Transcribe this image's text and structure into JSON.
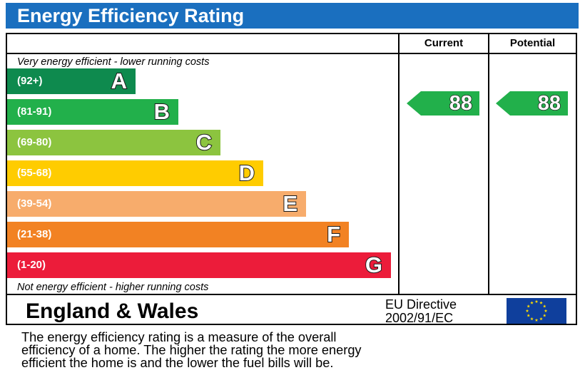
{
  "title": "Energy Efficiency Rating",
  "columns": {
    "current": "Current",
    "potential": "Potential"
  },
  "top_note": "Very energy efficient - lower running costs",
  "bottom_note": "Not energy efficient - higher running costs",
  "region": "England & Wales",
  "directive": {
    "line1": "EU Directive",
    "line2": "2002/91/EC"
  },
  "description": {
    "line1": "The energy efficiency rating is a measure of the overall",
    "line2": "efficiency of a home.  The higher the rating the more energy",
    "line3": "efficient the home is and the lower the fuel bills will be."
  },
  "chart_data": {
    "type": "bar",
    "categories": [
      "A",
      "B",
      "C",
      "D",
      "E",
      "F",
      "G"
    ],
    "bands": [
      {
        "letter": "A",
        "range": "(92+)",
        "color": "#0e8a4e"
      },
      {
        "letter": "B",
        "range": "(81-91)",
        "color": "#22b04b"
      },
      {
        "letter": "C",
        "range": "(69-80)",
        "color": "#8cc43f"
      },
      {
        "letter": "D",
        "range": "(55-68)",
        "color": "#ffcc00"
      },
      {
        "letter": "E",
        "range": "(39-54)",
        "color": "#f7ac6c"
      },
      {
        "letter": "F",
        "range": "(21-38)",
        "color": "#f28223"
      },
      {
        "letter": "G",
        "range": "(1-20)",
        "color": "#ec1c3a"
      }
    ],
    "current": {
      "value": 88,
      "band": "B",
      "color": "#22b04b"
    },
    "potential": {
      "value": 88,
      "band": "B",
      "color": "#22b04b"
    }
  }
}
